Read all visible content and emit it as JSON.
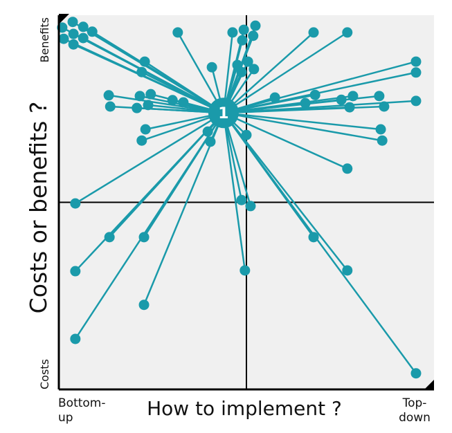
{
  "chart_data": {
    "type": "spoke",
    "x_label": "How to implement ?",
    "y_label": "Costs or benefits ?",
    "x_low_label": [
      "Bottom-",
      "up"
    ],
    "x_high_label": [
      "Top-",
      "down"
    ],
    "y_low_label": "Costs",
    "y_high_label": "Benefits",
    "xlim": [
      0,
      100
    ],
    "ylim": [
      0,
      100
    ],
    "quadrant_lines": {
      "x": 50,
      "y": 50
    },
    "color": "#1a9aaa",
    "hub": {
      "label": "1",
      "x": 43.9,
      "y": 73.9
    },
    "x": [
      0.9,
      3.7,
      6.5,
      8.9,
      1.3,
      3.9,
      6.5,
      3.9,
      31.7,
      22.9,
      22.1,
      40.8,
      46.3,
      49.3,
      52.4,
      51.8,
      48.9,
      50.4,
      47.6,
      52.0,
      48.7,
      67.9,
      76.9,
      95.2,
      95.2,
      13.3,
      13.7,
      21.6,
      24.5,
      23.8,
      20.8,
      30.3,
      33.2,
      57.6,
      68.3,
      78.4,
      85.4,
      75.3,
      65.7,
      77.5,
      86.7,
      95.2,
      23.1,
      22.1,
      39.7,
      40.4,
      50.0,
      85.8,
      86.2,
      76.9,
      4.4,
      48.7,
      51.1,
      13.5,
      22.7,
      67.9,
      4.4,
      49.6,
      76.9,
      22.7,
      4.4,
      95.2
    ],
    "values": [
      96.7,
      98.2,
      96.9,
      95.6,
      93.7,
      95.0,
      93.9,
      92.2,
      95.4,
      87.6,
      84.8,
      86.1,
      95.4,
      96.1,
      97.2,
      94.5,
      93.3,
      87.6,
      86.7,
      85.6,
      84.8,
      95.4,
      95.4,
      87.6,
      84.7,
      78.6,
      75.6,
      78.4,
      78.9,
      76.0,
      75.2,
      77.3,
      76.7,
      78.0,
      78.7,
      78.4,
      78.4,
      77.4,
      76.5,
      75.4,
      75.6,
      77.1,
      69.5,
      66.5,
      68.9,
      66.2,
      68.0,
      69.5,
      66.5,
      59.0,
      49.7,
      50.6,
      49.0,
      40.7,
      40.7,
      40.7,
      31.6,
      31.8,
      31.8,
      22.6,
      13.5,
      4.3
    ]
  }
}
